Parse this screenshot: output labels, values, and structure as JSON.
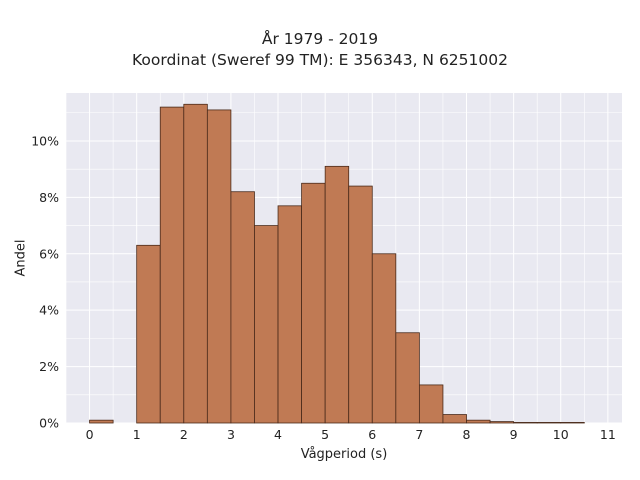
{
  "chart_data": {
    "type": "bar",
    "title": "År 1979 - 2019",
    "subtitle": "Koordinat (Sweref 99 TM): E 356343, N 6251002",
    "xlabel": "Vågperiod (s)",
    "ylabel": "Andel",
    "bin_width": 0.5,
    "bins": [
      0,
      0.5,
      1,
      1.5,
      2,
      2.5,
      3,
      3.5,
      4,
      4.5,
      5,
      5.5,
      6,
      6.5,
      7,
      7.5,
      8,
      8.5,
      9,
      9.5,
      10,
      10.5
    ],
    "values": [
      0.1,
      0,
      6.3,
      11.2,
      11.3,
      11.1,
      8.2,
      7.0,
      7.7,
      8.5,
      9.1,
      8.4,
      6.0,
      3.2,
      1.35,
      0.3,
      0.1,
      0.05,
      0.02,
      0.02,
      0.02,
      0.0
    ],
    "xlim": [
      -0.5,
      11.3
    ],
    "ylim": [
      0,
      11.7
    ],
    "xticks": [
      0,
      1,
      2,
      3,
      4,
      5,
      6,
      7,
      8,
      9,
      10,
      11
    ],
    "yticks": [
      0,
      2,
      4,
      6,
      8,
      10
    ],
    "ytick_labels": [
      "0%",
      "2%",
      "4%",
      "6%",
      "8%",
      "10%"
    ],
    "grid": true,
    "colors": {
      "bar_fill": "#c07a54",
      "bar_edge": "#4a2a1a",
      "plot_background": "#e9e9f1",
      "grid": "#ffffff"
    }
  }
}
